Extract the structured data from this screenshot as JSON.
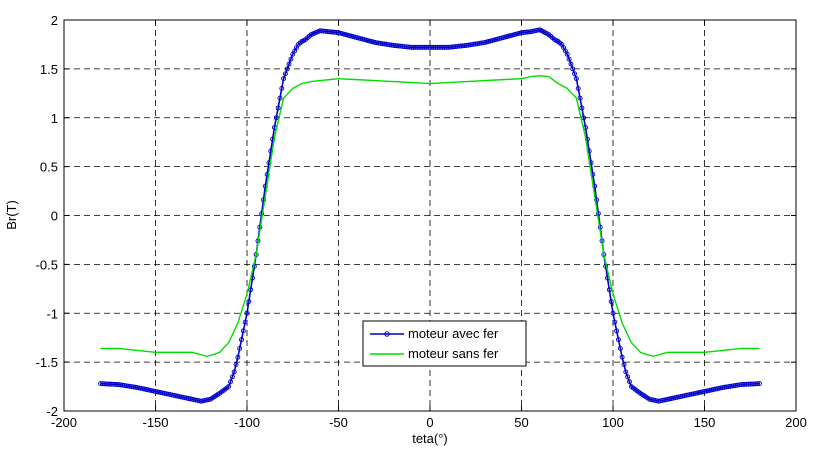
{
  "chart_data": {
    "type": "line",
    "title": "",
    "xlabel": "teta(°)",
    "ylabel": "Br(T)",
    "xlim": [
      -200,
      200
    ],
    "ylim": [
      -2,
      2
    ],
    "xticks": [
      -200,
      -150,
      -100,
      -50,
      0,
      50,
      100,
      150,
      200
    ],
    "yticks": [
      -2,
      -1.5,
      -1,
      -0.5,
      0,
      0.5,
      1,
      1.5,
      2
    ],
    "xtick_labels": [
      "-200",
      "-150",
      "-100",
      "-50",
      "0",
      "50",
      "100",
      "150",
      "200"
    ],
    "ytick_labels": [
      "-2",
      "-1.5",
      "-1",
      "-0.5",
      "0",
      "0.5",
      "1",
      "1.5",
      "2"
    ],
    "grid": true,
    "legend_position": "center-bottom",
    "series": [
      {
        "name": "moteur avec fer",
        "color": "#0000cc",
        "marker": "circle",
        "x": [
          -180,
          -170,
          -160,
          -150,
          -140,
          -130,
          -125,
          -120,
          -115,
          -110,
          -107,
          -105,
          -100,
          -95,
          -90,
          -85,
          -80,
          -75,
          -72,
          -70,
          -68,
          -65,
          -60,
          -55,
          -50,
          -40,
          -30,
          -20,
          -10,
          0,
          10,
          20,
          30,
          40,
          50,
          55,
          60,
          65,
          68,
          70,
          72,
          75,
          80,
          85,
          90,
          95,
          100,
          105,
          107,
          110,
          115,
          120,
          125,
          130,
          140,
          150,
          160,
          170,
          180
        ],
        "y": [
          -1.72,
          -1.73,
          -1.76,
          -1.8,
          -1.84,
          -1.88,
          -1.9,
          -1.88,
          -1.82,
          -1.75,
          -1.6,
          -1.45,
          -1.0,
          -0.4,
          0.3,
          0.9,
          1.4,
          1.65,
          1.75,
          1.78,
          1.8,
          1.85,
          1.89,
          1.88,
          1.87,
          1.82,
          1.77,
          1.74,
          1.72,
          1.72,
          1.72,
          1.74,
          1.77,
          1.82,
          1.87,
          1.88,
          1.9,
          1.85,
          1.8,
          1.78,
          1.75,
          1.65,
          1.4,
          0.9,
          0.3,
          -0.4,
          -1.0,
          -1.45,
          -1.6,
          -1.75,
          -1.82,
          -1.88,
          -1.9,
          -1.88,
          -1.84,
          -1.8,
          -1.76,
          -1.73,
          -1.72
        ]
      },
      {
        "name": "moteur sans fer",
        "color": "#00dd00",
        "marker": "none",
        "x": [
          -180,
          -170,
          -160,
          -150,
          -140,
          -130,
          -122,
          -118,
          -115,
          -110,
          -105,
          -100,
          -95,
          -90,
          -85,
          -80,
          -75,
          -70,
          -65,
          -60,
          -55,
          -50,
          -40,
          -30,
          -20,
          -10,
          0,
          10,
          20,
          30,
          40,
          50,
          55,
          60,
          65,
          70,
          75,
          80,
          85,
          90,
          95,
          100,
          105,
          110,
          115,
          118,
          122,
          130,
          140,
          150,
          160,
          170,
          180
        ],
        "y": [
          -1.36,
          -1.36,
          -1.38,
          -1.4,
          -1.4,
          -1.4,
          -1.44,
          -1.42,
          -1.4,
          -1.3,
          -1.1,
          -0.8,
          -0.4,
          0.2,
          0.8,
          1.2,
          1.3,
          1.35,
          1.37,
          1.38,
          1.39,
          1.4,
          1.39,
          1.38,
          1.37,
          1.36,
          1.35,
          1.36,
          1.37,
          1.38,
          1.39,
          1.4,
          1.42,
          1.43,
          1.42,
          1.35,
          1.3,
          1.2,
          0.8,
          0.2,
          -0.4,
          -0.8,
          -1.1,
          -1.3,
          -1.4,
          -1.42,
          -1.44,
          -1.4,
          -1.4,
          -1.4,
          -1.38,
          -1.36,
          -1.36
        ]
      }
    ]
  }
}
